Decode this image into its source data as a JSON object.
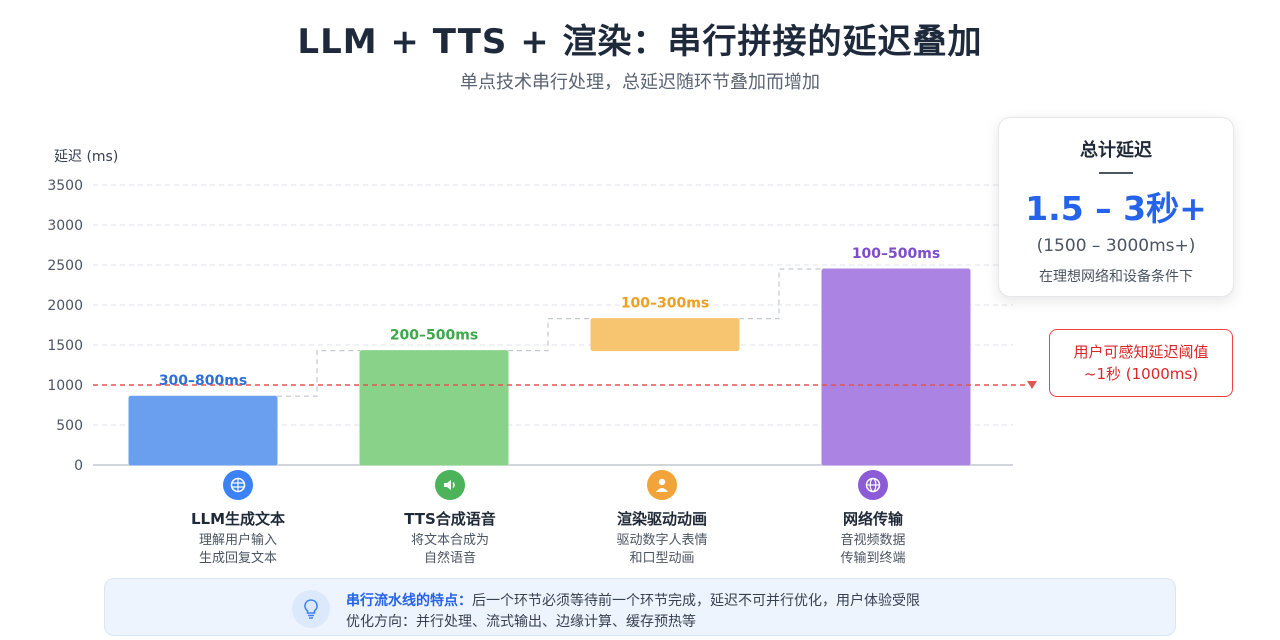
{
  "header": {
    "title": "LLM + TTS + 渲染：串行拼接的延迟叠加",
    "subtitle": "单点技术串行处理，总延迟随环节叠加而增加"
  },
  "chart_data": {
    "type": "bar",
    "ylabel": "延迟 (ms)",
    "ylim": [
      0,
      3500
    ],
    "yticks": [
      0,
      500,
      1000,
      1500,
      2000,
      2500,
      3000,
      3500
    ],
    "grid": true,
    "categories": [
      "LLM生成文本",
      "TTS合成语音",
      "渲染驱动动画",
      "网络传输"
    ],
    "bars": [
      {
        "start": 0,
        "end": 860,
        "label": "300–800ms",
        "color": "#6a9ff0",
        "label_color": "#2f6fd8"
      },
      {
        "start": 0,
        "end": 1430,
        "label": "200–500ms",
        "color": "#89d28a",
        "label_color": "#3da84a"
      },
      {
        "start": 1430,
        "end": 1830,
        "label": "100–300ms",
        "color": "#f7c46f",
        "label_color": "#f0a020"
      },
      {
        "start": 0,
        "end": 2450,
        "label": "100–500ms",
        "color": "#ab83e3",
        "label_color": "#7e4bcc"
      }
    ],
    "threshold": 1000,
    "threshold_color": "#e25555"
  },
  "total": {
    "title": "总计延迟",
    "value": "1.5 – 3秒+",
    "ms": "(1500 – 3000ms+)",
    "condition": "在理想网络和设备条件下"
  },
  "threshold_note": {
    "line1": "用户可感知延迟阈值",
    "line2": "~1秒 (1000ms)"
  },
  "stages": [
    {
      "name": "LLM生成文本",
      "desc1": "理解用户输入",
      "desc2": "生成回复文本",
      "icon": "brain-icon",
      "color": "#3b82f6"
    },
    {
      "name": "TTS合成语音",
      "desc1": "将文本合成为",
      "desc2": "自然语音",
      "icon": "speaker-icon",
      "color": "#4cb35a"
    },
    {
      "name": "渲染驱动动画",
      "desc1": "驱动数字人表情",
      "desc2": "和口型动画",
      "icon": "person-icon",
      "color": "#f2a33a"
    },
    {
      "name": "网络传输",
      "desc1": "音视频数据",
      "desc2": "传输到终端",
      "icon": "globe-icon",
      "color": "#8b5cd6"
    }
  ],
  "footer": {
    "key": "串行流水线的特点：",
    "line1": "后一个环节必须等待前一个环节完成，延迟不可并行优化，用户体验受限",
    "line2": "优化方向：并行处理、流式输出、边缘计算、缓存预热等",
    "icon": "lightbulb-icon"
  }
}
